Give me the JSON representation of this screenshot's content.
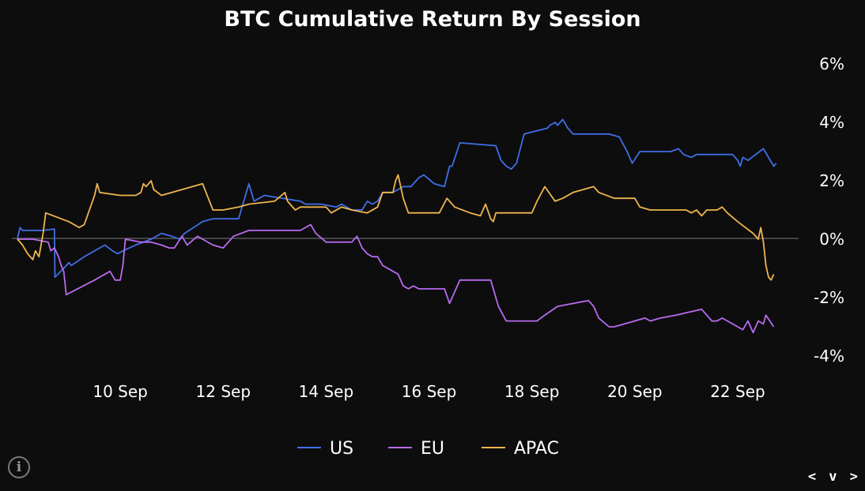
{
  "chart_data": {
    "type": "line",
    "title": "BTC Cumulative Return By Session",
    "xlabel": "",
    "ylabel": "",
    "x_tick_labels": [
      "10 Sep",
      "12 Sep",
      "14 Sep",
      "16 Sep",
      "18 Sep",
      "20 Sep",
      "22 Sep"
    ],
    "x_tick_days": [
      10,
      12,
      14,
      16,
      18,
      20,
      22
    ],
    "xlim": [
      8.0,
      22.6
    ],
    "y_tick_labels": [
      "6%",
      "4%",
      "2%",
      "0%",
      "-2%",
      "-4%"
    ],
    "y_tick_values": [
      6,
      4,
      2,
      0,
      -2,
      -4
    ],
    "ylim": [
      -4,
      6
    ],
    "zero_line": true,
    "legend_position": "bottom-center",
    "series": [
      {
        "name": "US",
        "color": "#3f6fe6",
        "points": [
          [
            8.0,
            0.0
          ],
          [
            8.05,
            0.4
          ],
          [
            8.1,
            0.3
          ],
          [
            8.3,
            0.3
          ],
          [
            8.5,
            0.3
          ],
          [
            8.72,
            0.35
          ],
          [
            8.73,
            -1.3
          ],
          [
            8.9,
            -1.0
          ],
          [
            9.0,
            -0.8
          ],
          [
            9.05,
            -0.9
          ],
          [
            9.3,
            -0.6
          ],
          [
            9.7,
            -0.2
          ],
          [
            9.85,
            -0.4
          ],
          [
            9.95,
            -0.5
          ],
          [
            10.05,
            -0.4
          ],
          [
            10.3,
            -0.2
          ],
          [
            10.6,
            0.0
          ],
          [
            10.8,
            0.2
          ],
          [
            11.0,
            0.1
          ],
          [
            11.15,
            0.0
          ],
          [
            11.25,
            0.2
          ],
          [
            11.6,
            0.6
          ],
          [
            11.8,
            0.7
          ],
          [
            12.3,
            0.7
          ],
          [
            12.4,
            1.3
          ],
          [
            12.5,
            1.9
          ],
          [
            12.6,
            1.3
          ],
          [
            12.7,
            1.4
          ],
          [
            12.8,
            1.5
          ],
          [
            13.5,
            1.3
          ],
          [
            13.6,
            1.2
          ],
          [
            13.9,
            1.2
          ],
          [
            14.2,
            1.1
          ],
          [
            14.3,
            1.2
          ],
          [
            14.5,
            1.0
          ],
          [
            14.7,
            1.0
          ],
          [
            14.8,
            1.3
          ],
          [
            14.9,
            1.2
          ],
          [
            15.0,
            1.3
          ],
          [
            15.1,
            1.6
          ],
          [
            15.3,
            1.6
          ],
          [
            15.5,
            1.8
          ],
          [
            15.65,
            1.8
          ],
          [
            15.8,
            2.1
          ],
          [
            15.9,
            2.2
          ],
          [
            16.1,
            1.9
          ],
          [
            16.3,
            1.8
          ],
          [
            16.4,
            2.5
          ],
          [
            16.45,
            2.5
          ],
          [
            16.6,
            3.3
          ],
          [
            17.3,
            3.2
          ],
          [
            17.4,
            2.7
          ],
          [
            17.5,
            2.5
          ],
          [
            17.6,
            2.4
          ],
          [
            17.7,
            2.6
          ],
          [
            17.85,
            3.6
          ],
          [
            18.3,
            3.8
          ],
          [
            18.35,
            3.9
          ],
          [
            18.45,
            4.0
          ],
          [
            18.5,
            3.9
          ],
          [
            18.6,
            4.1
          ],
          [
            18.7,
            3.8
          ],
          [
            18.8,
            3.6
          ],
          [
            18.9,
            3.6
          ],
          [
            19.5,
            3.6
          ],
          [
            19.7,
            3.5
          ],
          [
            19.85,
            3.0
          ],
          [
            19.95,
            2.6
          ],
          [
            20.1,
            3.0
          ],
          [
            20.3,
            3.0
          ],
          [
            20.7,
            3.0
          ],
          [
            20.85,
            3.1
          ],
          [
            20.95,
            2.9
          ],
          [
            21.1,
            2.8
          ],
          [
            21.2,
            2.9
          ],
          [
            21.9,
            2.9
          ],
          [
            22.0,
            2.7
          ],
          [
            22.05,
            2.5
          ],
          [
            22.1,
            2.8
          ],
          [
            22.2,
            2.7
          ],
          [
            22.5,
            3.1
          ],
          [
            22.7,
            2.5
          ],
          [
            22.75,
            2.6
          ]
        ]
      },
      {
        "name": "EU",
        "color": "#b86af0",
        "points": [
          [
            8.0,
            0.0
          ],
          [
            8.3,
            0.0
          ],
          [
            8.6,
            -0.1
          ],
          [
            8.65,
            -0.4
          ],
          [
            8.72,
            -0.3
          ],
          [
            8.8,
            -0.6
          ],
          [
            8.85,
            -0.9
          ],
          [
            8.9,
            -1.1
          ],
          [
            8.95,
            -1.9
          ],
          [
            9.5,
            -1.4
          ],
          [
            9.8,
            -1.1
          ],
          [
            9.9,
            -1.4
          ],
          [
            10.0,
            -1.4
          ],
          [
            10.05,
            -0.9
          ],
          [
            10.1,
            0.0
          ],
          [
            10.4,
            -0.1
          ],
          [
            10.6,
            -0.1
          ],
          [
            10.8,
            -0.2
          ],
          [
            10.95,
            -0.3
          ],
          [
            11.05,
            -0.3
          ],
          [
            11.2,
            0.1
          ],
          [
            11.3,
            -0.2
          ],
          [
            11.5,
            0.1
          ],
          [
            11.8,
            -0.2
          ],
          [
            12.0,
            -0.3
          ],
          [
            12.2,
            0.1
          ],
          [
            12.5,
            0.3
          ],
          [
            13.0,
            0.3
          ],
          [
            13.5,
            0.3
          ],
          [
            13.7,
            0.5
          ],
          [
            13.8,
            0.2
          ],
          [
            14.0,
            -0.1
          ],
          [
            14.3,
            -0.1
          ],
          [
            14.5,
            -0.1
          ],
          [
            14.6,
            0.1
          ],
          [
            14.7,
            -0.3
          ],
          [
            14.8,
            -0.5
          ],
          [
            14.9,
            -0.6
          ],
          [
            15.0,
            -0.6
          ],
          [
            15.1,
            -0.9
          ],
          [
            15.3,
            -1.1
          ],
          [
            15.4,
            -1.2
          ],
          [
            15.5,
            -1.6
          ],
          [
            15.6,
            -1.7
          ],
          [
            15.7,
            -1.6
          ],
          [
            15.8,
            -1.7
          ],
          [
            16.3,
            -1.7
          ],
          [
            16.4,
            -2.2
          ],
          [
            16.5,
            -1.8
          ],
          [
            16.6,
            -1.4
          ],
          [
            17.2,
            -1.4
          ],
          [
            17.35,
            -2.3
          ],
          [
            17.5,
            -2.8
          ],
          [
            17.6,
            -2.8
          ],
          [
            18.1,
            -2.8
          ],
          [
            18.25,
            -2.6
          ],
          [
            18.5,
            -2.3
          ],
          [
            19.1,
            -2.1
          ],
          [
            19.2,
            -2.3
          ],
          [
            19.3,
            -2.7
          ],
          [
            19.5,
            -3.0
          ],
          [
            19.6,
            -3.0
          ],
          [
            20.2,
            -2.7
          ],
          [
            20.3,
            -2.8
          ],
          [
            20.5,
            -2.7
          ],
          [
            20.8,
            -2.6
          ],
          [
            21.3,
            -2.4
          ],
          [
            21.4,
            -2.6
          ],
          [
            21.5,
            -2.8
          ],
          [
            21.6,
            -2.8
          ],
          [
            21.7,
            -2.7
          ],
          [
            22.0,
            -3.0
          ],
          [
            22.1,
            -3.1
          ],
          [
            22.2,
            -2.8
          ],
          [
            22.3,
            -3.2
          ],
          [
            22.4,
            -2.8
          ],
          [
            22.5,
            -2.9
          ],
          [
            22.55,
            -2.6
          ],
          [
            22.7,
            -3.0
          ]
        ]
      },
      {
        "name": "APAC",
        "color": "#efb54e",
        "points": [
          [
            8.0,
            0.0
          ],
          [
            8.1,
            -0.2
          ],
          [
            8.2,
            -0.5
          ],
          [
            8.3,
            -0.7
          ],
          [
            8.35,
            -0.4
          ],
          [
            8.42,
            -0.6
          ],
          [
            8.5,
            0.2
          ],
          [
            8.55,
            0.9
          ],
          [
            9.0,
            0.6
          ],
          [
            9.2,
            0.4
          ],
          [
            9.3,
            0.5
          ],
          [
            9.4,
            1.0
          ],
          [
            9.5,
            1.5
          ],
          [
            9.55,
            1.9
          ],
          [
            9.6,
            1.6
          ],
          [
            10.0,
            1.5
          ],
          [
            10.3,
            1.5
          ],
          [
            10.4,
            1.6
          ],
          [
            10.45,
            1.9
          ],
          [
            10.5,
            1.8
          ],
          [
            10.6,
            2.0
          ],
          [
            10.65,
            1.7
          ],
          [
            10.8,
            1.5
          ],
          [
            11.6,
            1.9
          ],
          [
            11.8,
            1.0
          ],
          [
            12.0,
            1.0
          ],
          [
            12.3,
            1.1
          ],
          [
            12.5,
            1.2
          ],
          [
            13.0,
            1.3
          ],
          [
            13.2,
            1.6
          ],
          [
            13.25,
            1.3
          ],
          [
            13.4,
            1.0
          ],
          [
            13.5,
            1.1
          ],
          [
            14.0,
            1.1
          ],
          [
            14.1,
            0.9
          ],
          [
            14.3,
            1.1
          ],
          [
            14.5,
            1.0
          ],
          [
            14.8,
            0.9
          ],
          [
            15.0,
            1.1
          ],
          [
            15.1,
            1.6
          ],
          [
            15.3,
            1.6
          ],
          [
            15.35,
            2.0
          ],
          [
            15.4,
            2.2
          ],
          [
            15.5,
            1.4
          ],
          [
            15.6,
            0.9
          ],
          [
            16.2,
            0.9
          ],
          [
            16.35,
            1.4
          ],
          [
            16.5,
            1.1
          ],
          [
            16.8,
            0.9
          ],
          [
            17.0,
            0.8
          ],
          [
            17.1,
            1.2
          ],
          [
            17.2,
            0.7
          ],
          [
            17.25,
            0.6
          ],
          [
            17.3,
            0.9
          ],
          [
            17.45,
            0.9
          ],
          [
            18.0,
            0.9
          ],
          [
            18.1,
            1.3
          ],
          [
            18.25,
            1.8
          ],
          [
            18.45,
            1.3
          ],
          [
            18.6,
            1.4
          ],
          [
            18.8,
            1.6
          ],
          [
            19.0,
            1.7
          ],
          [
            19.2,
            1.8
          ],
          [
            19.3,
            1.6
          ],
          [
            19.6,
            1.4
          ],
          [
            20.0,
            1.4
          ],
          [
            20.1,
            1.1
          ],
          [
            20.3,
            1.0
          ],
          [
            21.0,
            1.0
          ],
          [
            21.1,
            0.9
          ],
          [
            21.2,
            1.0
          ],
          [
            21.3,
            0.8
          ],
          [
            21.4,
            1.0
          ],
          [
            21.6,
            1.0
          ],
          [
            21.7,
            1.1
          ],
          [
            21.8,
            0.9
          ],
          [
            22.0,
            0.6
          ],
          [
            22.3,
            0.2
          ],
          [
            22.4,
            0.0
          ],
          [
            22.45,
            0.4
          ],
          [
            22.5,
            -0.1
          ],
          [
            22.55,
            -0.9
          ],
          [
            22.6,
            -1.3
          ],
          [
            22.65,
            -1.4
          ],
          [
            22.7,
            -1.2
          ]
        ]
      }
    ]
  },
  "ui": {
    "info_icon": "info-icon",
    "info_glyph": "i",
    "nav_label": "< v >"
  }
}
